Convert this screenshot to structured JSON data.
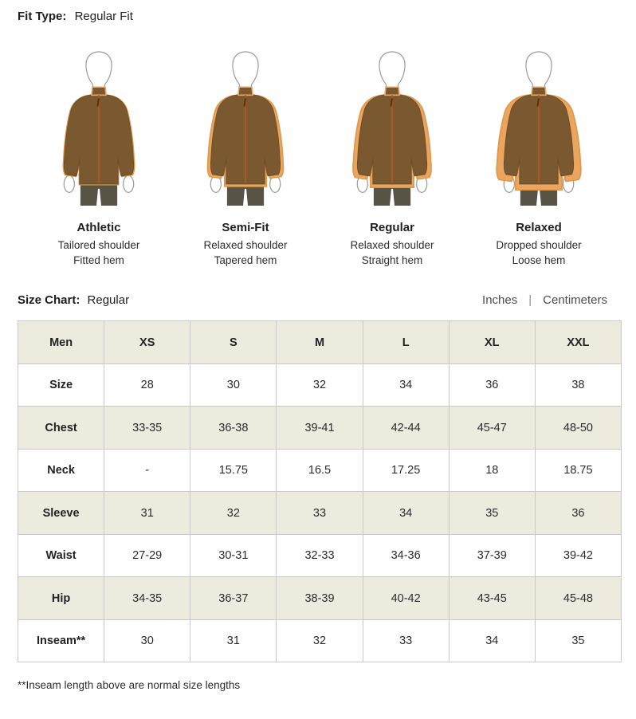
{
  "fit_type": {
    "label": "Fit Type:",
    "value": "Regular Fit"
  },
  "fits": [
    {
      "name": "Athletic",
      "shoulder": "Tailored shoulder",
      "hem": "Fitted hem"
    },
    {
      "name": "Semi-Fit",
      "shoulder": "Relaxed shoulder",
      "hem": "Tapered hem"
    },
    {
      "name": "Regular",
      "shoulder": "Relaxed shoulder",
      "hem": "Straight hem"
    },
    {
      "name": "Relaxed",
      "shoulder": "Dropped shoulder",
      "hem": "Loose hem"
    }
  ],
  "size_chart": {
    "label": "Size Chart:",
    "value": "Regular",
    "units": [
      "Inches",
      "Centimeters"
    ],
    "unit_divider": "|",
    "table": {
      "header": [
        "Men",
        "XS",
        "S",
        "M",
        "L",
        "XL",
        "XXL"
      ],
      "rows": [
        {
          "label": "Size",
          "values": [
            "28",
            "30",
            "32",
            "34",
            "36",
            "38"
          ]
        },
        {
          "label": "Chest",
          "values": [
            "33-35",
            "36-38",
            "39-41",
            "42-44",
            "45-47",
            "48-50"
          ]
        },
        {
          "label": "Neck",
          "values": [
            "-",
            "15.75",
            "16.5",
            "17.25",
            "18",
            "18.75"
          ]
        },
        {
          "label": "Sleeve",
          "values": [
            "31",
            "32",
            "33",
            "34",
            "35",
            "36"
          ]
        },
        {
          "label": "Waist",
          "values": [
            "27-29",
            "30-31",
            "32-33",
            "34-36",
            "37-39",
            "39-42"
          ]
        },
        {
          "label": "Hip",
          "values": [
            "34-35",
            "36-37",
            "38-39",
            "40-42",
            "43-45",
            "45-48"
          ]
        },
        {
          "label": "Inseam**",
          "values": [
            "30",
            "31",
            "32",
            "33",
            "34",
            "35"
          ]
        }
      ]
    }
  },
  "footnote": "**Inseam length above are normal size lengths",
  "colors": {
    "jacket_brown": "#7b5930",
    "jacket_brown_edge": "#6d4e28",
    "jacket_orange": "#eca55e",
    "jacket_orange_edge": "#dd9a4c",
    "zipper": "#a85a1e",
    "pants": "#575345",
    "outline_gray": "#9a9a9a",
    "header_bg": "#edeade",
    "table_border": "#c9c9c9"
  }
}
